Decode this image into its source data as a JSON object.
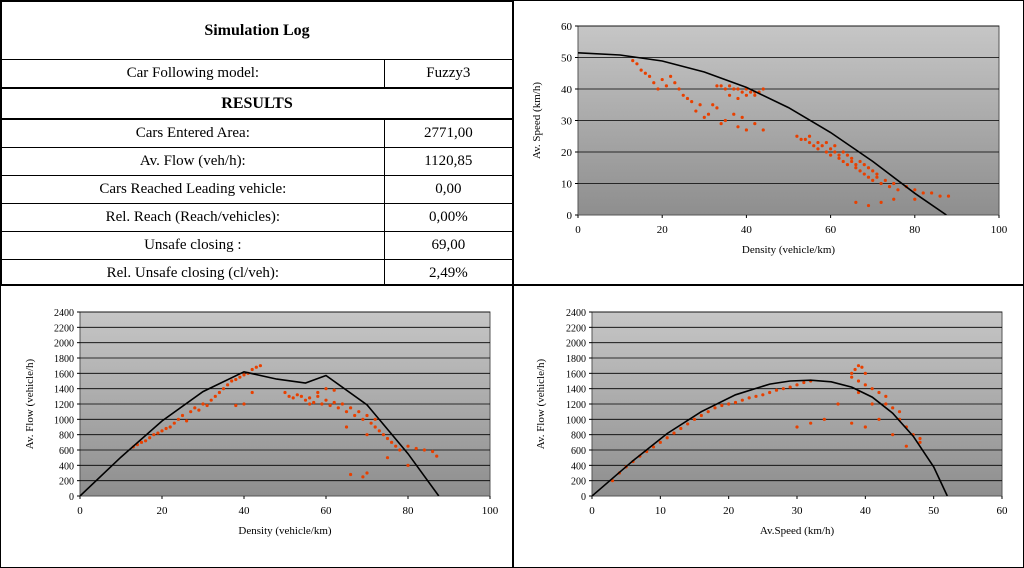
{
  "log": {
    "title": "Simulation Log",
    "model_label": "Car Following model:",
    "model_value": "Fuzzy3",
    "results_heading": "RESULTS",
    "rows": [
      {
        "label": "Cars Entered Area:",
        "value": "2771,00"
      },
      {
        "label": "Av. Flow (veh/h):",
        "value": "1120,85"
      },
      {
        "label": "Cars Reached Leading vehicle:",
        "value": "0,00"
      },
      {
        "label": "Rel. Reach (Reach/vehicles):",
        "value": "0,00%"
      },
      {
        "label": "Unsafe closing :",
        "value": "69,00"
      },
      {
        "label": "Rel. Unsafe closing (cl/veh):",
        "value": "2,49%"
      }
    ]
  },
  "colors": {
    "plot_top": "#c6c6c6",
    "plot_bottom": "#8e8e8e",
    "points": "#e84000",
    "curve": "#000000",
    "gridline": "#000000"
  },
  "chart_data": [
    {
      "id": "speed-density",
      "type": "scatter",
      "xlabel": "Density (vehicle/km)",
      "ylabel": "Av. Speed (km/h)",
      "xlim": [
        0,
        100
      ],
      "ylim": [
        0,
        60
      ],
      "xticks": [
        0,
        20,
        40,
        60,
        80,
        100
      ],
      "yticks": [
        0,
        10,
        20,
        30,
        40,
        50,
        60
      ],
      "grid": true,
      "fit_curve": {
        "x": [
          0,
          10,
          20,
          30,
          40,
          50,
          60,
          70,
          80,
          87.5
        ],
        "y": [
          51.5,
          50.8,
          48.9,
          45.4,
          40.5,
          34.1,
          26.2,
          17.0,
          6.9,
          0
        ]
      },
      "points": [
        [
          13,
          49
        ],
        [
          14,
          48
        ],
        [
          15,
          46
        ],
        [
          16,
          45
        ],
        [
          17,
          44
        ],
        [
          18,
          42
        ],
        [
          19,
          40
        ],
        [
          20,
          43
        ],
        [
          21,
          41
        ],
        [
          22,
          44
        ],
        [
          23,
          42
        ],
        [
          24,
          40
        ],
        [
          25,
          38
        ],
        [
          26,
          37
        ],
        [
          27,
          36
        ],
        [
          28,
          33
        ],
        [
          29,
          35
        ],
        [
          30,
          31
        ],
        [
          31,
          32
        ],
        [
          32,
          35
        ],
        [
          33,
          34
        ],
        [
          34,
          29
        ],
        [
          35,
          30
        ],
        [
          36,
          38
        ],
        [
          37,
          32
        ],
        [
          38,
          28
        ],
        [
          39,
          31
        ],
        [
          40,
          27
        ],
        [
          42,
          29
        ],
        [
          44,
          27
        ],
        [
          33,
          41
        ],
        [
          34,
          41
        ],
        [
          35,
          40
        ],
        [
          36,
          41
        ],
        [
          37,
          40
        ],
        [
          38,
          40
        ],
        [
          39,
          39
        ],
        [
          40,
          40
        ],
        [
          41,
          39
        ],
        [
          42,
          39
        ],
        [
          43,
          39
        ],
        [
          44,
          40
        ],
        [
          40,
          38
        ],
        [
          42,
          38
        ],
        [
          38,
          37
        ],
        [
          52,
          25
        ],
        [
          53,
          24
        ],
        [
          54,
          24
        ],
        [
          55,
          23
        ],
        [
          55,
          25
        ],
        [
          56,
          22
        ],
        [
          57,
          23
        ],
        [
          57,
          21
        ],
        [
          58,
          22
        ],
        [
          59,
          20
        ],
        [
          59,
          23
        ],
        [
          60,
          21
        ],
        [
          60,
          19
        ],
        [
          61,
          20
        ],
        [
          61,
          22
        ],
        [
          62,
          19
        ],
        [
          62,
          18
        ],
        [
          63,
          20
        ],
        [
          63,
          17
        ],
        [
          64,
          19
        ],
        [
          64,
          16
        ],
        [
          65,
          18
        ],
        [
          65,
          17
        ],
        [
          66,
          16
        ],
        [
          66,
          15
        ],
        [
          67,
          17
        ],
        [
          67,
          14
        ],
        [
          68,
          16
        ],
        [
          68,
          13
        ],
        [
          69,
          15
        ],
        [
          69,
          12
        ],
        [
          70,
          14
        ],
        [
          70,
          11
        ],
        [
          71,
          13
        ],
        [
          71,
          12
        ],
        [
          72,
          10
        ],
        [
          73,
          11
        ],
        [
          74,
          9
        ],
        [
          75,
          10
        ],
        [
          76,
          8
        ],
        [
          78,
          9
        ],
        [
          80,
          8
        ],
        [
          82,
          7
        ],
        [
          84,
          7
        ],
        [
          86,
          6
        ],
        [
          88,
          6
        ],
        [
          66,
          4
        ],
        [
          69,
          3
        ],
        [
          72,
          4
        ],
        [
          75,
          5
        ],
        [
          80,
          5
        ]
      ]
    },
    {
      "id": "flow-density",
      "type": "scatter",
      "xlabel": "Density (vehicle/km)",
      "ylabel": "Av. Flow (vehicle/h)",
      "xlim": [
        0,
        100
      ],
      "ylim": [
        0,
        2400
      ],
      "xticks": [
        0,
        20,
        40,
        60,
        80,
        100
      ],
      "yticks": [
        0,
        200,
        400,
        600,
        800,
        1000,
        1200,
        1400,
        1600,
        1800,
        2000,
        2200,
        2400
      ],
      "grid": true,
      "fit_curve": {
        "x": [
          0,
          10,
          20,
          30,
          40,
          48,
          55,
          60,
          70,
          80,
          87.5
        ],
        "y": [
          0,
          508,
          978,
          1362,
          1620,
          1525,
          1474,
          1572,
          1190,
          552,
          0
        ]
      },
      "points": [
        [
          13,
          640
        ],
        [
          14,
          670
        ],
        [
          15,
          700
        ],
        [
          16,
          720
        ],
        [
          17,
          760
        ],
        [
          18,
          800
        ],
        [
          19,
          820
        ],
        [
          20,
          850
        ],
        [
          21,
          880
        ],
        [
          22,
          900
        ],
        [
          23,
          950
        ],
        [
          24,
          1000
        ],
        [
          25,
          1050
        ],
        [
          26,
          980
        ],
        [
          27,
          1100
        ],
        [
          28,
          1150
        ],
        [
          29,
          1120
        ],
        [
          30,
          1200
        ],
        [
          31,
          1180
        ],
        [
          32,
          1250
        ],
        [
          33,
          1300
        ],
        [
          34,
          1350
        ],
        [
          35,
          1400
        ],
        [
          36,
          1450
        ],
        [
          37,
          1500
        ],
        [
          38,
          1520
        ],
        [
          39,
          1550
        ],
        [
          40,
          1580
        ],
        [
          41,
          1600
        ],
        [
          42,
          1650
        ],
        [
          43,
          1680
        ],
        [
          44,
          1700
        ],
        [
          38,
          1180
        ],
        [
          40,
          1200
        ],
        [
          42,
          1350
        ],
        [
          50,
          1350
        ],
        [
          51,
          1300
        ],
        [
          52,
          1280
        ],
        [
          53,
          1320
        ],
        [
          54,
          1300
        ],
        [
          55,
          1250
        ],
        [
          56,
          1280
        ],
        [
          57,
          1220
        ],
        [
          58,
          1300
        ],
        [
          59,
          1200
        ],
        [
          60,
          1250
        ],
        [
          61,
          1180
        ],
        [
          62,
          1220
        ],
        [
          63,
          1150
        ],
        [
          64,
          1200
        ],
        [
          65,
          1100
        ],
        [
          66,
          1150
        ],
        [
          67,
          1050
        ],
        [
          68,
          1100
        ],
        [
          69,
          1000
        ],
        [
          70,
          1050
        ],
        [
          71,
          950
        ],
        [
          72,
          900
        ],
        [
          73,
          850
        ],
        [
          74,
          800
        ],
        [
          75,
          750
        ],
        [
          76,
          700
        ],
        [
          77,
          650
        ],
        [
          78,
          600
        ],
        [
          80,
          650
        ],
        [
          82,
          620
        ],
        [
          84,
          600
        ],
        [
          86,
          580
        ],
        [
          87,
          520
        ],
        [
          60,
          1400
        ],
        [
          62,
          1380
        ],
        [
          58,
          1350
        ],
        [
          56,
          1200
        ],
        [
          65,
          900
        ],
        [
          70,
          800
        ],
        [
          72,
          1000
        ],
        [
          66,
          280
        ],
        [
          69,
          250
        ],
        [
          70,
          300
        ],
        [
          75,
          500
        ],
        [
          80,
          400
        ]
      ]
    },
    {
      "id": "flow-speed",
      "type": "scatter",
      "xlabel": "Av.Speed (km/h)",
      "ylabel": "Av. Flow (vehicle/h)",
      "xlim": [
        0,
        60
      ],
      "ylim": [
        0,
        2400
      ],
      "xticks": [
        0,
        10,
        20,
        30,
        40,
        50,
        60
      ],
      "yticks": [
        0,
        200,
        400,
        600,
        800,
        1000,
        1200,
        1400,
        1600,
        1800,
        2000,
        2200,
        2400
      ],
      "grid": true,
      "fit_curve": {
        "x": [
          0,
          6,
          11,
          16,
          21,
          26,
          29,
          32,
          35,
          38,
          41,
          44,
          47,
          50,
          52
        ],
        "y": [
          0,
          460,
          815,
          1100,
          1320,
          1460,
          1500,
          1510,
          1490,
          1420,
          1290,
          1080,
          780,
          380,
          0
        ]
      },
      "points": [
        [
          3,
          200
        ],
        [
          4,
          300
        ],
        [
          5,
          380
        ],
        [
          6,
          450
        ],
        [
          7,
          520
        ],
        [
          8,
          580
        ],
        [
          9,
          640
        ],
        [
          10,
          700
        ],
        [
          11,
          760
        ],
        [
          12,
          820
        ],
        [
          13,
          880
        ],
        [
          14,
          940
        ],
        [
          15,
          1000
        ],
        [
          16,
          1050
        ],
        [
          17,
          1100
        ],
        [
          18,
          1150
        ],
        [
          19,
          1180
        ],
        [
          20,
          1200
        ],
        [
          21,
          1220
        ],
        [
          22,
          1250
        ],
        [
          23,
          1280
        ],
        [
          24,
          1300
        ],
        [
          25,
          1320
        ],
        [
          26,
          1350
        ],
        [
          27,
          1380
        ],
        [
          28,
          1400
        ],
        [
          29,
          1420
        ],
        [
          30,
          1450
        ],
        [
          31,
          1480
        ],
        [
          32,
          1500
        ],
        [
          38,
          1600
        ],
        [
          38.5,
          1650
        ],
        [
          39,
          1700
        ],
        [
          39.5,
          1680
        ],
        [
          40,
          1600
        ],
        [
          38,
          1550
        ],
        [
          39,
          1500
        ],
        [
          40,
          1450
        ],
        [
          41,
          1400
        ],
        [
          42,
          1350
        ],
        [
          43,
          1200
        ],
        [
          44,
          1150
        ],
        [
          45,
          1000
        ],
        [
          46,
          900
        ],
        [
          47,
          800
        ],
        [
          48,
          700
        ],
        [
          43,
          1300
        ],
        [
          45,
          1100
        ],
        [
          42,
          1000
        ],
        [
          40,
          900
        ],
        [
          36,
          1200
        ],
        [
          38,
          950
        ],
        [
          34,
          1000
        ],
        [
          32,
          950
        ],
        [
          30,
          900
        ],
        [
          44,
          800
        ],
        [
          46,
          650
        ],
        [
          48,
          750
        ],
        [
          41,
          1200
        ],
        [
          39,
          1350
        ]
      ]
    }
  ]
}
